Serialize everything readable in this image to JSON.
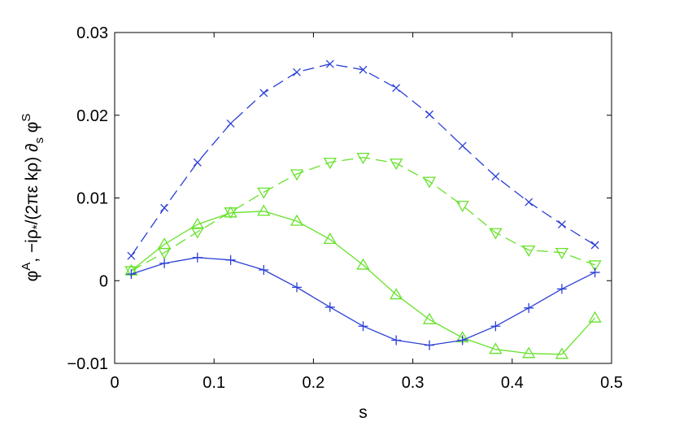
{
  "chart_data": {
    "type": "line",
    "xlabel": "s",
    "ylabel": {
      "phi1": "φ",
      "sup1": "A",
      "mid": ", −iρ",
      "star": "*",
      "rest": "/(2πε kρ) ∂",
      "sub": "s",
      "phi2": " φ",
      "sup2": "S"
    },
    "xlim": [
      0,
      0.5
    ],
    "ylim": [
      -0.01,
      0.03
    ],
    "x_ticks": [
      "0",
      "0.1",
      "0.2",
      "0.3",
      "0.4",
      "0.5"
    ],
    "y_ticks": [
      "−0.01",
      "0",
      "0.01",
      "0.02",
      "0.03"
    ],
    "grid": false,
    "series": [
      {
        "color": "#2b3fd6",
        "line": "dashed",
        "marker": "x",
        "x": [
          0.0167,
          0.05,
          0.0833,
          0.1167,
          0.15,
          0.1833,
          0.2167,
          0.25,
          0.2833,
          0.3167,
          0.35,
          0.3833,
          0.4167,
          0.45,
          0.4833
        ],
        "y": [
          0.003,
          0.0088,
          0.0143,
          0.019,
          0.0227,
          0.0252,
          0.0262,
          0.0255,
          0.0233,
          0.0201,
          0.0163,
          0.0126,
          0.0095,
          0.0068,
          0.0043
        ]
      },
      {
        "color": "#66e22a",
        "line": "dashed",
        "marker": "triangle-down",
        "x": [
          0.0167,
          0.05,
          0.0833,
          0.1167,
          0.15,
          0.1833,
          0.2167,
          0.25,
          0.2833,
          0.3167,
          0.35,
          0.3833,
          0.4167,
          0.45,
          0.4833
        ],
        "y": [
          0.0012,
          0.0034,
          0.0059,
          0.0083,
          0.0107,
          0.0129,
          0.0143,
          0.0149,
          0.0142,
          0.012,
          0.0091,
          0.0058,
          0.0037,
          0.0034,
          0.0019
        ]
      },
      {
        "color": "#66e22a",
        "line": "solid",
        "marker": "triangle-up",
        "x": [
          0.0167,
          0.05,
          0.0833,
          0.1167,
          0.15,
          0.1833,
          0.2167,
          0.25,
          0.2833,
          0.3167,
          0.35,
          0.3833,
          0.4167,
          0.45,
          0.4833
        ],
        "y": [
          0.0012,
          0.0044,
          0.0068,
          0.0082,
          0.0084,
          0.0072,
          0.005,
          0.0019,
          -0.0017,
          -0.0047,
          -0.0069,
          -0.0083,
          -0.0088,
          -0.0089,
          -0.0045
        ]
      },
      {
        "color": "#2b3fd6",
        "line": "solid",
        "marker": "plus",
        "x": [
          0.0167,
          0.05,
          0.0833,
          0.1167,
          0.15,
          0.1833,
          0.2167,
          0.25,
          0.2833,
          0.3167,
          0.35,
          0.3833,
          0.4167,
          0.45,
          0.4833
        ],
        "y": [
          0.0008,
          0.0021,
          0.0028,
          0.0025,
          0.0013,
          -0.0008,
          -0.0032,
          -0.0055,
          -0.0072,
          -0.0078,
          -0.0072,
          -0.0055,
          -0.0033,
          -0.001,
          0.001
        ]
      }
    ]
  }
}
